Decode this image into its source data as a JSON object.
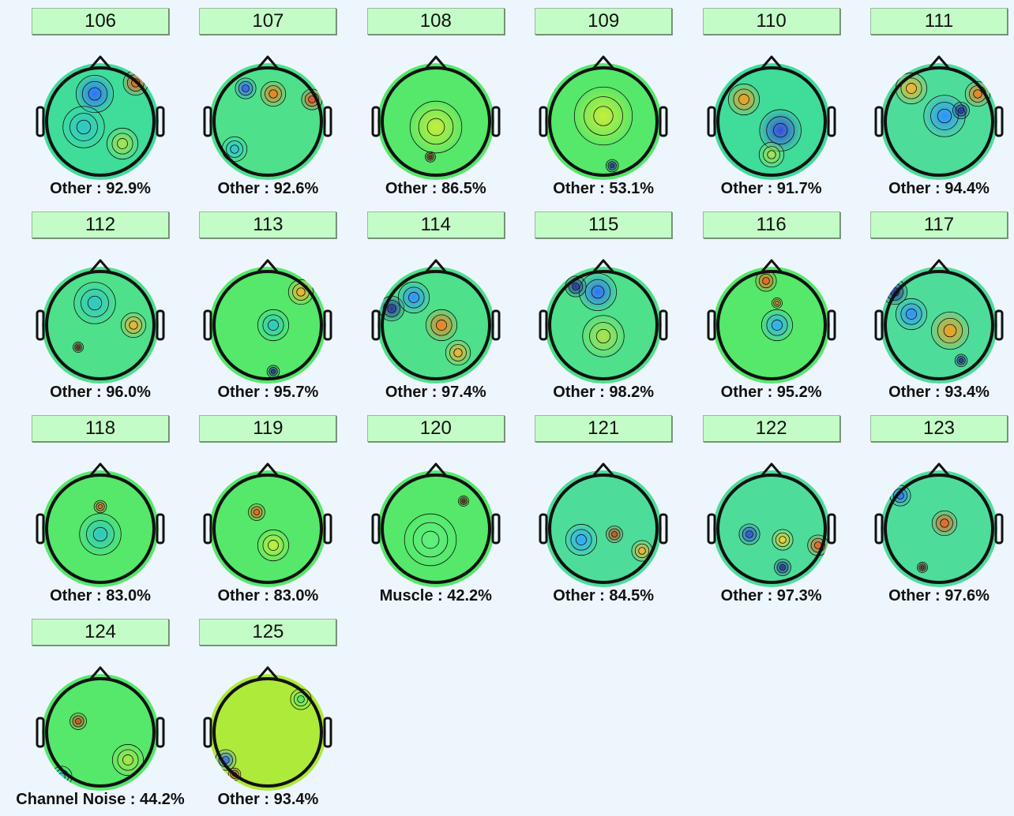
{
  "colors": {
    "background": "#eef6fd",
    "button_fill": "#c4fcc7"
  },
  "components": [
    {
      "number": "106",
      "label": "Other : 92.9%"
    },
    {
      "number": "107",
      "label": "Other : 92.6%"
    },
    {
      "number": "108",
      "label": "Other : 86.5%"
    },
    {
      "number": "109",
      "label": "Other : 53.1%"
    },
    {
      "number": "110",
      "label": "Other : 91.7%"
    },
    {
      "number": "111",
      "label": "Other : 94.4%"
    },
    {
      "number": "112",
      "label": "Other : 96.0%"
    },
    {
      "number": "113",
      "label": "Other : 95.7%"
    },
    {
      "number": "114",
      "label": "Other : 97.4%"
    },
    {
      "number": "115",
      "label": "Other : 98.2%"
    },
    {
      "number": "116",
      "label": "Other : 95.2%"
    },
    {
      "number": "117",
      "label": "Other : 93.4%"
    },
    {
      "number": "118",
      "label": "Other : 83.0%"
    },
    {
      "number": "119",
      "label": "Other : 83.0%"
    },
    {
      "number": "120",
      "label": "Muscle : 42.2%"
    },
    {
      "number": "121",
      "label": "Other : 84.5%"
    },
    {
      "number": "122",
      "label": "Other : 97.3%"
    },
    {
      "number": "123",
      "label": "Other : 97.6%"
    },
    {
      "number": "124",
      "label": "Channel Noise : 44.2%"
    },
    {
      "number": "125",
      "label": "Other : 93.4%"
    }
  ]
}
